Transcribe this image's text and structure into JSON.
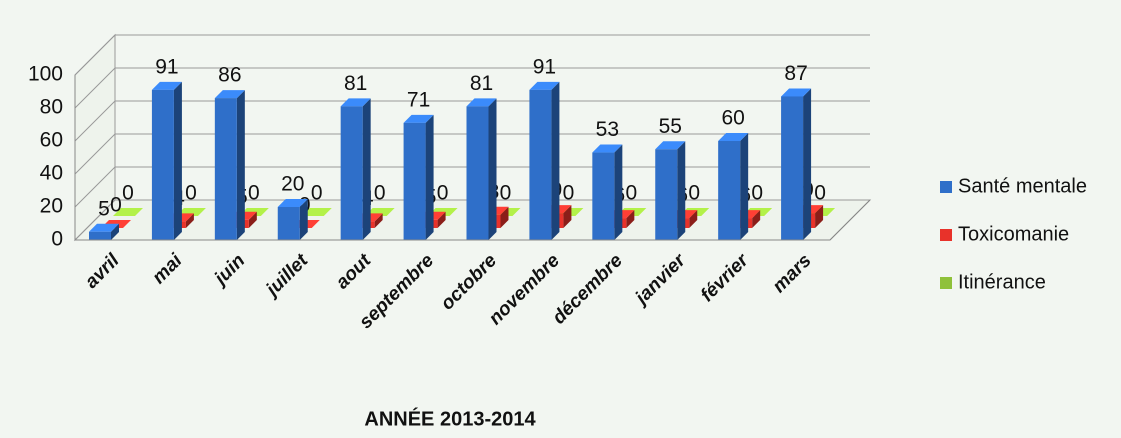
{
  "chart_data": {
    "type": "bar",
    "x_label": "ANNÉE 2013-2014",
    "categories": [
      "avril",
      "mai",
      "juin",
      "juillet",
      "aout",
      "septembre",
      "octobre",
      "novembre",
      "décembre",
      "janvier",
      "février",
      "mars"
    ],
    "series": [
      {
        "name": "Santé mentale",
        "color": "#2f6fc9",
        "values": [
          5,
          91,
          86,
          20,
          81,
          71,
          81,
          91,
          53,
          55,
          60,
          87
        ]
      },
      {
        "name": "Toxicomanie",
        "color": "#e8322a",
        "values": [
          0,
          4,
          5,
          0,
          4,
          5,
          8,
          9,
          6,
          6,
          6,
          9
        ]
      },
      {
        "name": "Itinérance",
        "color": "#8fc13a",
        "values": [
          0,
          0,
          0,
          0,
          0,
          0,
          0,
          0,
          0,
          0,
          0,
          0
        ]
      }
    ],
    "ylim": [
      0,
      100
    ],
    "yticks": [
      0,
      20,
      40,
      60,
      80,
      100
    ],
    "grid": true,
    "legend": "right"
  }
}
